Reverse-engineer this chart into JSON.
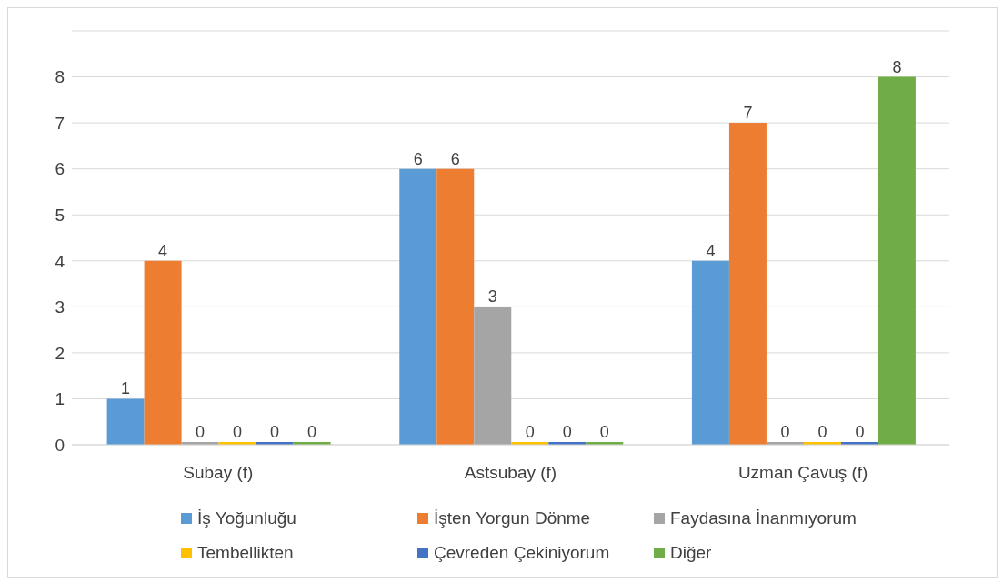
{
  "chart_data": {
    "type": "bar",
    "categories": [
      "Subay (f)",
      "Astsubay (f)",
      "Uzman Çavuş (f)"
    ],
    "series": [
      {
        "name": "İş Yoğunluğu",
        "color": "#5b9bd5",
        "values": [
          1,
          6,
          4
        ]
      },
      {
        "name": "İşten Yorgun Dönme",
        "color": "#ed7d31",
        "values": [
          4,
          6,
          7
        ]
      },
      {
        "name": "Faydasına İnanmıyorum",
        "color": "#a5a5a5",
        "values": [
          0,
          3,
          0
        ]
      },
      {
        "name": "Tembellikten",
        "color": "#ffc000",
        "values": [
          0,
          0,
          0
        ]
      },
      {
        "name": "Çevreden Çekiniyorum",
        "color": "#4472c4",
        "values": [
          0,
          0,
          0
        ]
      },
      {
        "name": "Diğer",
        "color": "#70ad47",
        "values": [
          0,
          0,
          8
        ]
      }
    ],
    "ylim": [
      0,
      9
    ],
    "yticks": [
      0,
      1,
      2,
      3,
      4,
      5,
      6,
      7,
      8,
      {
        "value": 9,
        "label": null
      }
    ],
    "grid": "y",
    "legend": "bottom",
    "data_labels": true
  }
}
